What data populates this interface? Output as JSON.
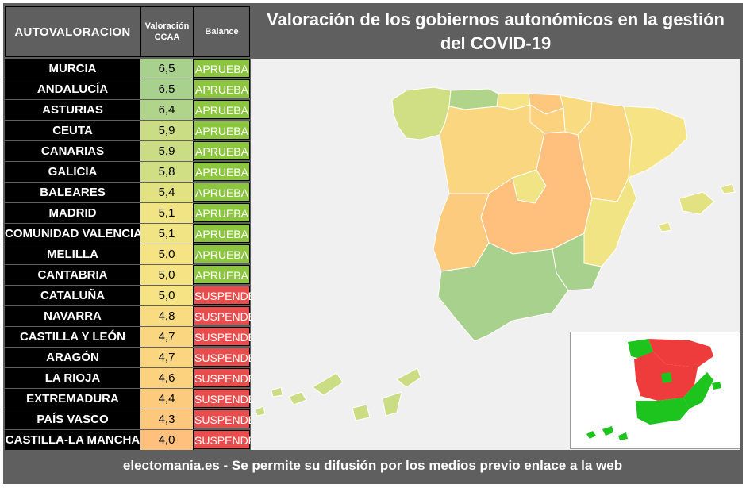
{
  "header": {
    "col_name": "AUTOVALORACION",
    "col_value": "Valoración CCAA",
    "col_balance": "Balance",
    "title": "Valoración de los gobiernos autonómicos en la gestión del COVID-19"
  },
  "footer": "electomania.es - Se permite su difusión por los medios previo enlace a la web",
  "colors": {
    "aprueba": "#8cc63f",
    "suspende": "#e84c4c",
    "inset_pass": "#1ec41e",
    "inset_fail": "#ee3b3b",
    "header_bg": "#5f5f5f"
  },
  "chart_data": {
    "type": "table",
    "title": "Valoración de los gobiernos autonómicos en la gestión del COVID-19",
    "columns": [
      "AUTOVALORACION",
      "Valoración CCAA",
      "Balance"
    ],
    "rows": [
      {
        "region": "MURCIA",
        "value": "6,5",
        "balance": "APRUEBA",
        "color": "#a9d18e"
      },
      {
        "region": "ANDALUCÍA",
        "value": "6,5",
        "balance": "APRUEBA",
        "color": "#a9d18e"
      },
      {
        "region": "ASTURIAS",
        "value": "6,4",
        "balance": "APRUEBA",
        "color": "#b0d48a"
      },
      {
        "region": "CEUTA",
        "value": "5,9",
        "balance": "APRUEBA",
        "color": "#cbdd84"
      },
      {
        "region": "CANARIAS",
        "value": "5,9",
        "balance": "APRUEBA",
        "color": "#cbdd84"
      },
      {
        "region": "GALICIA",
        "value": "5,8",
        "balance": "APRUEBA",
        "color": "#d0df83"
      },
      {
        "region": "BALEARES",
        "value": "5,4",
        "balance": "APRUEBA",
        "color": "#e3e283"
      },
      {
        "region": "MADRID",
        "value": "5,1",
        "balance": "APRUEBA",
        "color": "#f1e484"
      },
      {
        "region": "COMUNIDAD VALENCIANA",
        "value": "5,1",
        "balance": "APRUEBA",
        "color": "#f1e484"
      },
      {
        "region": "MELILLA",
        "value": "5,0",
        "balance": "APRUEBA",
        "color": "#f6e484"
      },
      {
        "region": "CANTABRIA",
        "value": "5,0",
        "balance": "APRUEBA",
        "color": "#f6e484"
      },
      {
        "region": "CATALUÑA",
        "value": "5,0",
        "balance": "SUSPENDE",
        "color": "#f6e484"
      },
      {
        "region": "NAVARRA",
        "value": "4,8",
        "balance": "SUSPENDE",
        "color": "#f9dc82"
      },
      {
        "region": "CASTILLA Y LEÓN",
        "value": "4,7",
        "balance": "SUSPENDE",
        "color": "#fbd680"
      },
      {
        "region": "ARAGÓN",
        "value": "4,7",
        "balance": "SUSPENDE",
        "color": "#fbd680"
      },
      {
        "region": "LA RIOJA",
        "value": "4,6",
        "balance": "SUSPENDE",
        "color": "#fcd27f"
      },
      {
        "region": "EXTREMADURA",
        "value": "4,4",
        "balance": "SUSPENDE",
        "color": "#fdcb7e"
      },
      {
        "region": "PAÍS VASCO",
        "value": "4,3",
        "balance": "SUSPENDE",
        "color": "#fdc77d"
      },
      {
        "region": "CASTILLA-LA MANCHA",
        "value": "4,0",
        "balance": "SUSPENDE",
        "color": "#fec07c"
      }
    ]
  }
}
